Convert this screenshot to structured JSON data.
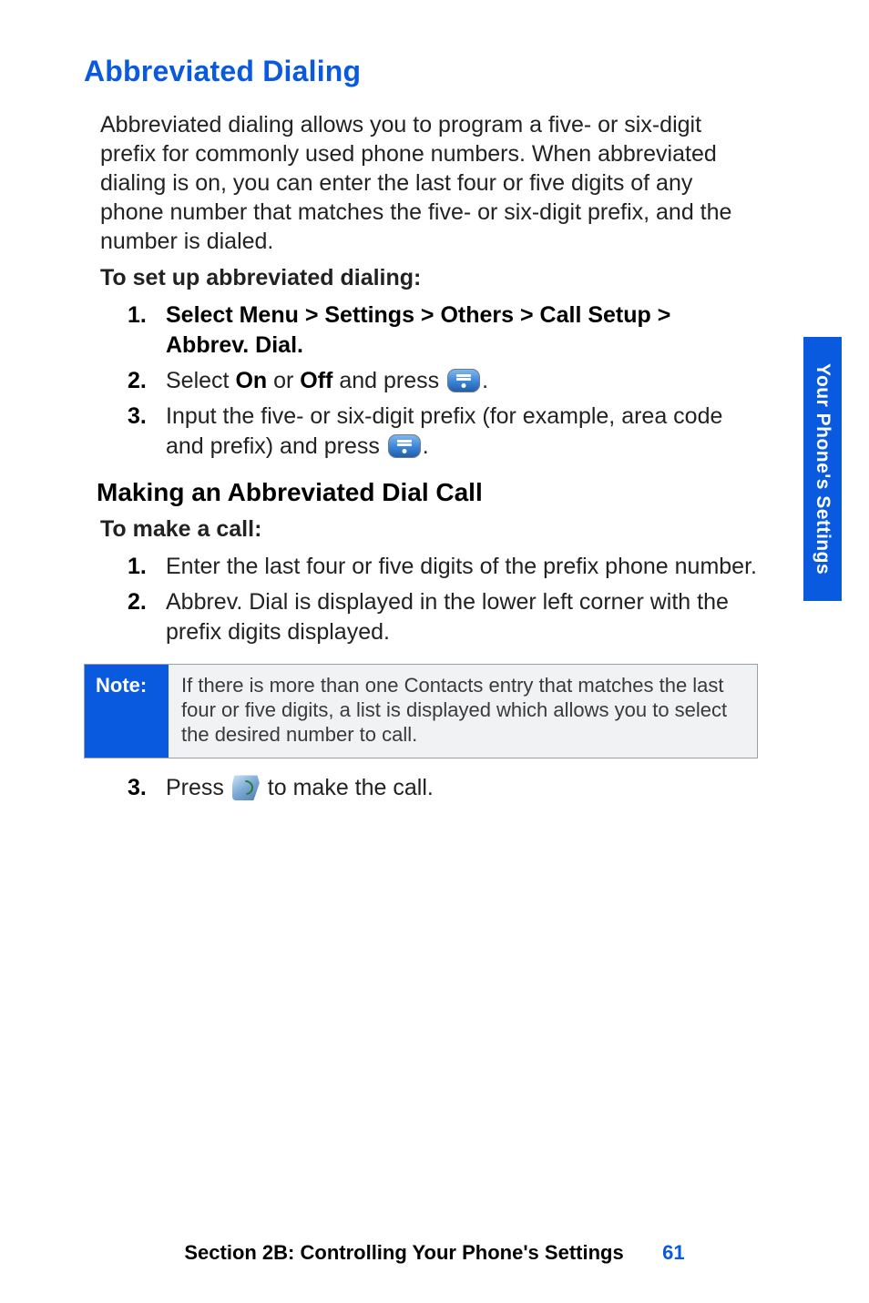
{
  "colors": {
    "accent": "#0a5ae0",
    "body_text": "#222222",
    "bold_text": "#000000",
    "note_bg": "#f1f2f3",
    "note_border": "#9aa0a6",
    "note_text": "#3a3a3a",
    "white": "#ffffff"
  },
  "typography": {
    "title_size_pt": 32,
    "subtitle_size_pt": 28,
    "body_size_pt": 25,
    "note_size_pt": 22,
    "footer_size_pt": 22,
    "family": "Helvetica Condensed"
  },
  "side_tab": {
    "label": "Your Phone's Settings"
  },
  "title": "Abbreviated Dialing",
  "intro": "Abbreviated dialing allows you to program a five- or six-digit prefix for commonly used phone numbers. When abbreviated dialing is on, you can enter the last four or five digits of any phone number that matches the five- or six-digit prefix, and the number is dialed.",
  "lead1": "To set up abbreviated dialing:",
  "steps1": {
    "n1": "1.",
    "s1": "Select Menu > Settings > Others > Call Setup > Abbrev. Dial.",
    "n2": "2.",
    "s2_a": "Select ",
    "s2_on": "On",
    "s2_or": " or ",
    "s2_off": "Off",
    "s2_b": " and press ",
    "s2_end": ".",
    "n3": "3.",
    "s3_a": "Input the five- or six-digit prefix (for example, area code and prefix) and press ",
    "s3_end": "."
  },
  "subhead": "Making an Abbreviated Dial Call",
  "lead2": "To make a call:",
  "steps2": {
    "n1": "1.",
    "s1": "Enter the last four or five digits of the prefix phone number.",
    "n2": "2.",
    "s2": "Abbrev. Dial is displayed in the lower left corner with the prefix digits displayed."
  },
  "note": {
    "label": "Note:",
    "text": "If there is more than one Contacts entry that matches the last four or five digits, a list is displayed which allows you to select the desired number to call."
  },
  "steps3": {
    "n3": "3.",
    "s3_a": "Press ",
    "s3_b": " to make the call."
  },
  "footer": {
    "section": "Section 2B: Controlling Your Phone's Settings",
    "page": "61"
  }
}
